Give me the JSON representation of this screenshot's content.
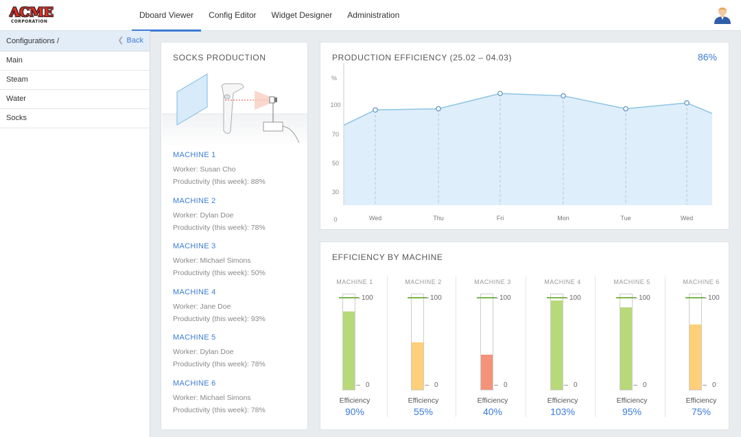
{
  "brand": {
    "name": "ACME",
    "sub": "CORPORATION"
  },
  "nav": [
    {
      "label": "Dboard Viewer",
      "active": true
    },
    {
      "label": "Config Editor",
      "active": false
    },
    {
      "label": "Widget Designer",
      "active": false
    },
    {
      "label": "Administration",
      "active": false
    }
  ],
  "sidebar": {
    "title": "Configurations /",
    "back_label": "Back",
    "items": [
      {
        "label": "Main"
      },
      {
        "label": "Steam"
      },
      {
        "label": "Water"
      },
      {
        "label": "Socks"
      }
    ]
  },
  "socks": {
    "title": "SOCKS PRODUCTION",
    "machines": [
      {
        "name": "MACHINE 1",
        "worker": "Worker: Susan Cho",
        "productivity": "Productivity (this week): 88%"
      },
      {
        "name": "MACHINE 2",
        "worker": "Worker: Dylan Doe",
        "productivity": "Productivity (this week): 78%"
      },
      {
        "name": "MACHINE 3",
        "worker": "Worker: Michael Simons",
        "productivity": "Productivity (this week): 50%"
      },
      {
        "name": "MACHINE 4",
        "worker": "Worker: Jane Doe",
        "productivity": "Productivity (this week): 93%"
      },
      {
        "name": "MACHINE 5",
        "worker": "Worker: Dylan Doe",
        "productivity": "Productivity (this week): 78%"
      },
      {
        "name": "MACHINE 6",
        "worker": "Worker: Michael Simons",
        "productivity": "Productivity (this week): 78%"
      }
    ]
  },
  "production": {
    "title": "PRODUCTION EFFICIENCY (25.02 – 04.03)",
    "value": "86%"
  },
  "efficiency": {
    "title": "EFFICIENCY BY MACHINE",
    "caption": "Efficiency",
    "scale_max": "100",
    "scale_min": "0"
  },
  "colors": {
    "accent": "#3a7bd5",
    "area": "#deeefa",
    "line": "#8cc3e6",
    "good": "#b8d97a",
    "warn": "#ffcf7a",
    "bad": "#f4937a",
    "target": "#7ab648"
  },
  "chart_data": [
    {
      "type": "area",
      "title": "PRODUCTION EFFICIENCY (25.02 – 04.03)",
      "ylabel": "%",
      "yticks": [
        0,
        30,
        50,
        70,
        100
      ],
      "ylim": [
        0,
        115
      ],
      "categories": [
        "Wed",
        "Thu",
        "Fri",
        "Mon",
        "Tue",
        "Wed"
      ],
      "values": [
        81,
        82,
        95,
        93,
        82,
        87
      ],
      "edge_left": 68,
      "edge_right": 78,
      "grid": "vertical dashed at points"
    },
    {
      "type": "bar",
      "title": "EFFICIENCY BY MACHINE",
      "categories": [
        "MACHINE 1",
        "MACHINE 2",
        "MACHINE 3",
        "MACHINE 4",
        "MACHINE 5",
        "MACHINE 6"
      ],
      "values": [
        90,
        55,
        40,
        103,
        95,
        75
      ],
      "labels": [
        "90%",
        "55%",
        "40%",
        "103%",
        "95%",
        "75%"
      ],
      "fill_colors": [
        "#b8d97a",
        "#ffcf7a",
        "#f4937a",
        "#b8d97a",
        "#b8d97a",
        "#ffcf7a"
      ],
      "ylim": [
        0,
        110
      ],
      "target": 100
    }
  ]
}
